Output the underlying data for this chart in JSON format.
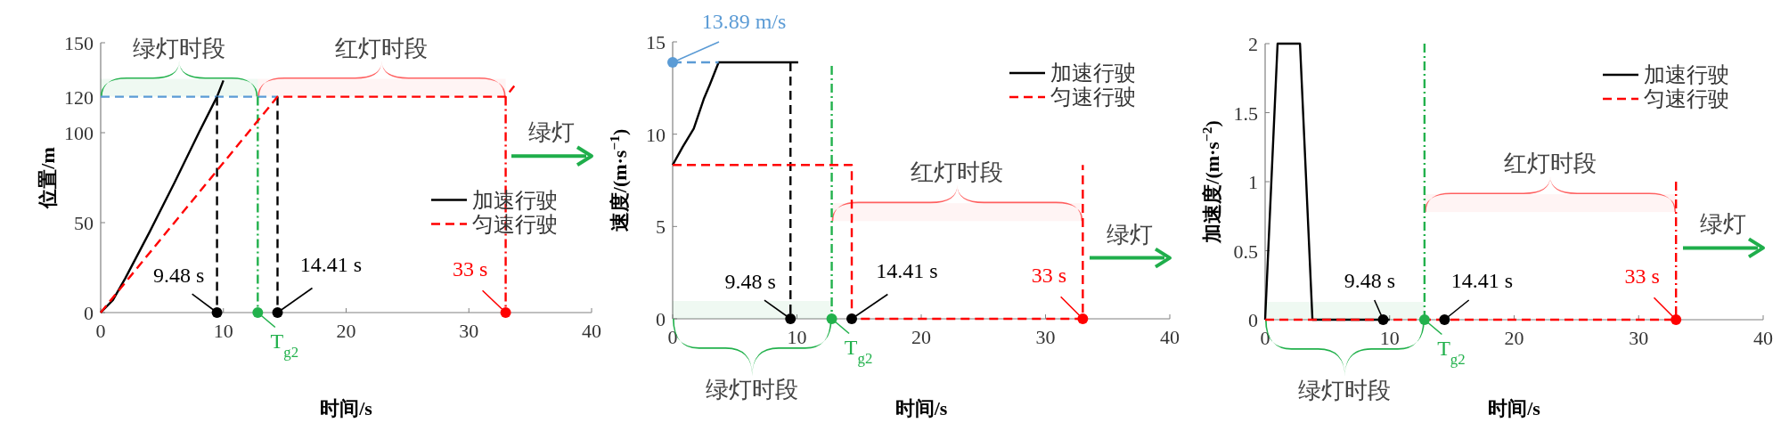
{
  "chart_data": [
    {
      "type": "line",
      "xlabel": "时间/s",
      "ylabel": "位置/m",
      "xlim": [
        0,
        40
      ],
      "xticks": [
        0,
        10,
        20,
        30,
        40
      ],
      "ylim": [
        0,
        150
      ],
      "yticks": [
        0,
        50,
        100,
        120,
        150
      ],
      "legend": "right",
      "series": [
        {
          "name": "加速行驶",
          "color": "#000000",
          "line_style": "solid",
          "x": [
            0,
            1,
            2,
            3,
            4,
            6,
            8,
            9.48,
            10
          ],
          "values": [
            0,
            7,
            19,
            32,
            45,
            72,
            100,
            120,
            129
          ]
        },
        {
          "color": "#5b9bd5",
          "line_style": "dashed",
          "x": [
            0,
            14.41
          ],
          "values": [
            120,
            120
          ]
        },
        {
          "color": "#000000",
          "line_style": "dashed",
          "x": [
            9.48,
            9.48
          ],
          "values": [
            120,
            0
          ]
        },
        {
          "color": "#000000",
          "line_style": "dashed",
          "x": [
            14.41,
            14.41
          ],
          "values": [
            120,
            0
          ]
        },
        {
          "color": "#22b14c",
          "line_style": "dashdot",
          "x": [
            12.8,
            12.8
          ],
          "values": [
            120,
            0
          ]
        },
        {
          "color": "#ff0000",
          "line_style": "dashdot",
          "x": [
            33,
            33
          ],
          "values": [
            120,
            0
          ]
        },
        {
          "name": "匀速行驶",
          "color": "#ff0000",
          "line_style": "dashed",
          "x": [
            0,
            14.41,
            33,
            33.7
          ],
          "values": [
            0,
            120,
            120,
            126
          ]
        },
        {
          "type": "scatter",
          "marker": "circle",
          "x": [
            9.48,
            12.8,
            14.41,
            33
          ],
          "values": [
            0,
            0,
            0,
            0
          ],
          "colors": [
            "#000000",
            "#22b14c",
            "#000000",
            "#ff0000"
          ]
        }
      ],
      "bands": [
        {
          "axis": "x",
          "from": 0,
          "to": 12.8,
          "label": "绿灯时段",
          "color": "#22b14c"
        },
        {
          "axis": "x",
          "from": 12.8,
          "to": 33,
          "label": "红灯时段",
          "color": "#ff6060"
        }
      ],
      "annotations": [
        {
          "text": "9.48 s",
          "x": 9.48,
          "y": 0
        },
        {
          "text": "T$_{g2}$",
          "x": 12.8,
          "y": 0
        },
        {
          "text": "14.41 s",
          "x": 14.41,
          "y": 0
        },
        {
          "text": "33 s",
          "x": 33,
          "y": 0
        },
        "绿灯"
      ]
    },
    {
      "type": "line",
      "xlabel": "时间/s",
      "ylabel": "速度/(m·s$^{−1}$)",
      "xlim": [
        0,
        40
      ],
      "xticks": [
        0,
        10,
        20,
        30,
        40
      ],
      "ylim": [
        0,
        15
      ],
      "yticks": [
        0,
        5,
        10,
        15
      ],
      "legend": "top right",
      "series": [
        {
          "name": "加速行驶",
          "color": "#000000",
          "line_style": "solid",
          "x": [
            0,
            0.8,
            1.7,
            2.5,
            3,
            3.7,
            10.1
          ],
          "values": [
            8.33,
            9.3,
            10.3,
            11.9,
            12.7,
            13.89,
            13.89
          ]
        },
        {
          "color": "#5b9bd5",
          "line_style": "dashed",
          "x": [
            0,
            3.7
          ],
          "values": [
            13.89,
            13.89
          ]
        },
        {
          "color": "#000000",
          "line_style": "dashed",
          "x": [
            9.48,
            9.48
          ],
          "values": [
            13.89,
            0
          ]
        },
        {
          "color": "#22b14c",
          "line_style": "dashdot",
          "x": [
            12.8,
            12.8
          ],
          "values": [
            13.7,
            0
          ]
        },
        {
          "name": "匀速行驶",
          "color": "#ff0000",
          "line_style": "dashed",
          "x": [
            0,
            14.41,
            14.41,
            33,
            33
          ],
          "values": [
            8.33,
            8.33,
            0,
            0,
            8.33
          ]
        },
        {
          "type": "scatter",
          "marker": "circle",
          "x": [
            0,
            9.48,
            12.8,
            14.41,
            33
          ],
          "values": [
            13.89,
            0,
            0,
            0,
            0
          ],
          "colors": [
            "#5b9bd5",
            "#000000",
            "#22b14c",
            "#000000",
            "#ff0000"
          ]
        }
      ],
      "bands": [
        {
          "axis": "x",
          "from": 0,
          "to": 12.8,
          "label": "绿灯时段",
          "color": "#22b14c"
        },
        {
          "axis": "x",
          "from": 12.8,
          "to": 33,
          "label": "红灯时段",
          "color": "#ff6060"
        }
      ],
      "annotations": [
        {
          "text": "13.89 m/s",
          "x": 0,
          "y": 13.89
        },
        {
          "text": "9.48 s",
          "x": 9.48,
          "y": 0
        },
        {
          "text": "T$_{g2}$",
          "x": 12.8,
          "y": 0
        },
        {
          "text": "14.41 s",
          "x": 14.41,
          "y": 0
        },
        {
          "text": "33 s",
          "x": 33,
          "y": 0
        },
        "绿灯"
      ]
    },
    {
      "type": "line",
      "xlabel": "时间/s",
      "ylabel": "加速度/(m·s$^{−2}$)",
      "xlim": [
        0,
        40
      ],
      "xticks": [
        0,
        10,
        20,
        30,
        40
      ],
      "ylim": [
        0,
        2
      ],
      "yticks": [
        0,
        0.5,
        1,
        1.5,
        2
      ],
      "legend": "top right",
      "series": [
        {
          "name": "加速行驶",
          "color": "#000000",
          "line_style": "solid",
          "x": [
            0,
            1,
            2.8,
            3.8,
            10
          ],
          "values": [
            0,
            2,
            2,
            0,
            0
          ]
        },
        {
          "color": "#22b14c",
          "line_style": "dashdot",
          "x": [
            12.8,
            12.8
          ],
          "values": [
            2,
            0
          ]
        },
        {
          "color": "#ff0000",
          "line_style": "dashdot",
          "x": [
            33,
            33
          ],
          "values": [
            1,
            0
          ]
        },
        {
          "name": "匀速行驶",
          "color": "#ff0000",
          "line_style": "dashed",
          "x": [
            0,
            33
          ],
          "values": [
            0,
            0
          ]
        },
        {
          "type": "scatter",
          "marker": "circle",
          "x": [
            9.48,
            12.8,
            14.41,
            33
          ],
          "values": [
            0,
            0,
            0,
            0
          ],
          "colors": [
            "#000000",
            "#22b14c",
            "#000000",
            "#ff0000"
          ]
        }
      ],
      "bands": [
        {
          "axis": "x",
          "from": 0,
          "to": 12.8,
          "label": "绿灯时段",
          "color": "#22b14c"
        },
        {
          "axis": "x",
          "from": 12.8,
          "to": 33,
          "label": "红灯时段",
          "color": "#ff6060"
        }
      ],
      "annotations": [
        {
          "text": "9.48 s",
          "x": 9.48,
          "y": 0
        },
        {
          "text": "T$_{g2}$",
          "x": 12.8,
          "y": 0
        },
        {
          "text": "14.41 s",
          "x": 14.41,
          "y": 0
        },
        {
          "text": "33 s",
          "x": 33,
          "y": 0
        },
        "绿灯"
      ]
    }
  ]
}
